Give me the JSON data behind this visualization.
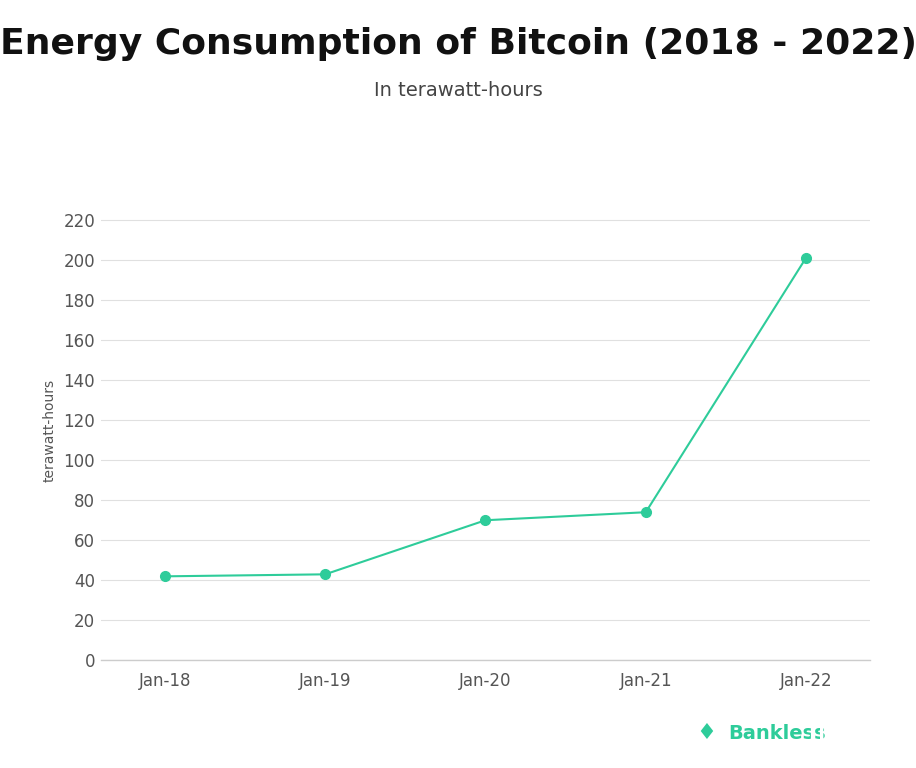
{
  "title": "Energy Consumption of Bitcoin (2018 - 2022)",
  "subtitle": "In terawatt-hours",
  "ylabel": "terawatt-hours",
  "x_labels": [
    "Jan-18",
    "Jan-19",
    "Jan-20",
    "Jan-21",
    "Jan-22"
  ],
  "x_values": [
    2018,
    2019,
    2020,
    2021,
    2022
  ],
  "y_values": [
    42,
    43,
    70,
    74,
    201
  ],
  "ylim": [
    0,
    230
  ],
  "yticks": [
    0,
    20,
    40,
    60,
    80,
    100,
    120,
    140,
    160,
    180,
    200,
    220
  ],
  "line_color": "#2ecc9a",
  "marker_color": "#2ecc9a",
  "marker_size": 7,
  "line_width": 1.5,
  "background_color": "#ffffff",
  "title_fontsize": 26,
  "title_fontweight": "bold",
  "subtitle_fontsize": 14,
  "ylabel_fontsize": 10,
  "tick_fontsize": 12,
  "footer_bg_color": "#111111",
  "footer_text_color": "#ffffff",
  "footer_accent_color": "#2ecc9a"
}
